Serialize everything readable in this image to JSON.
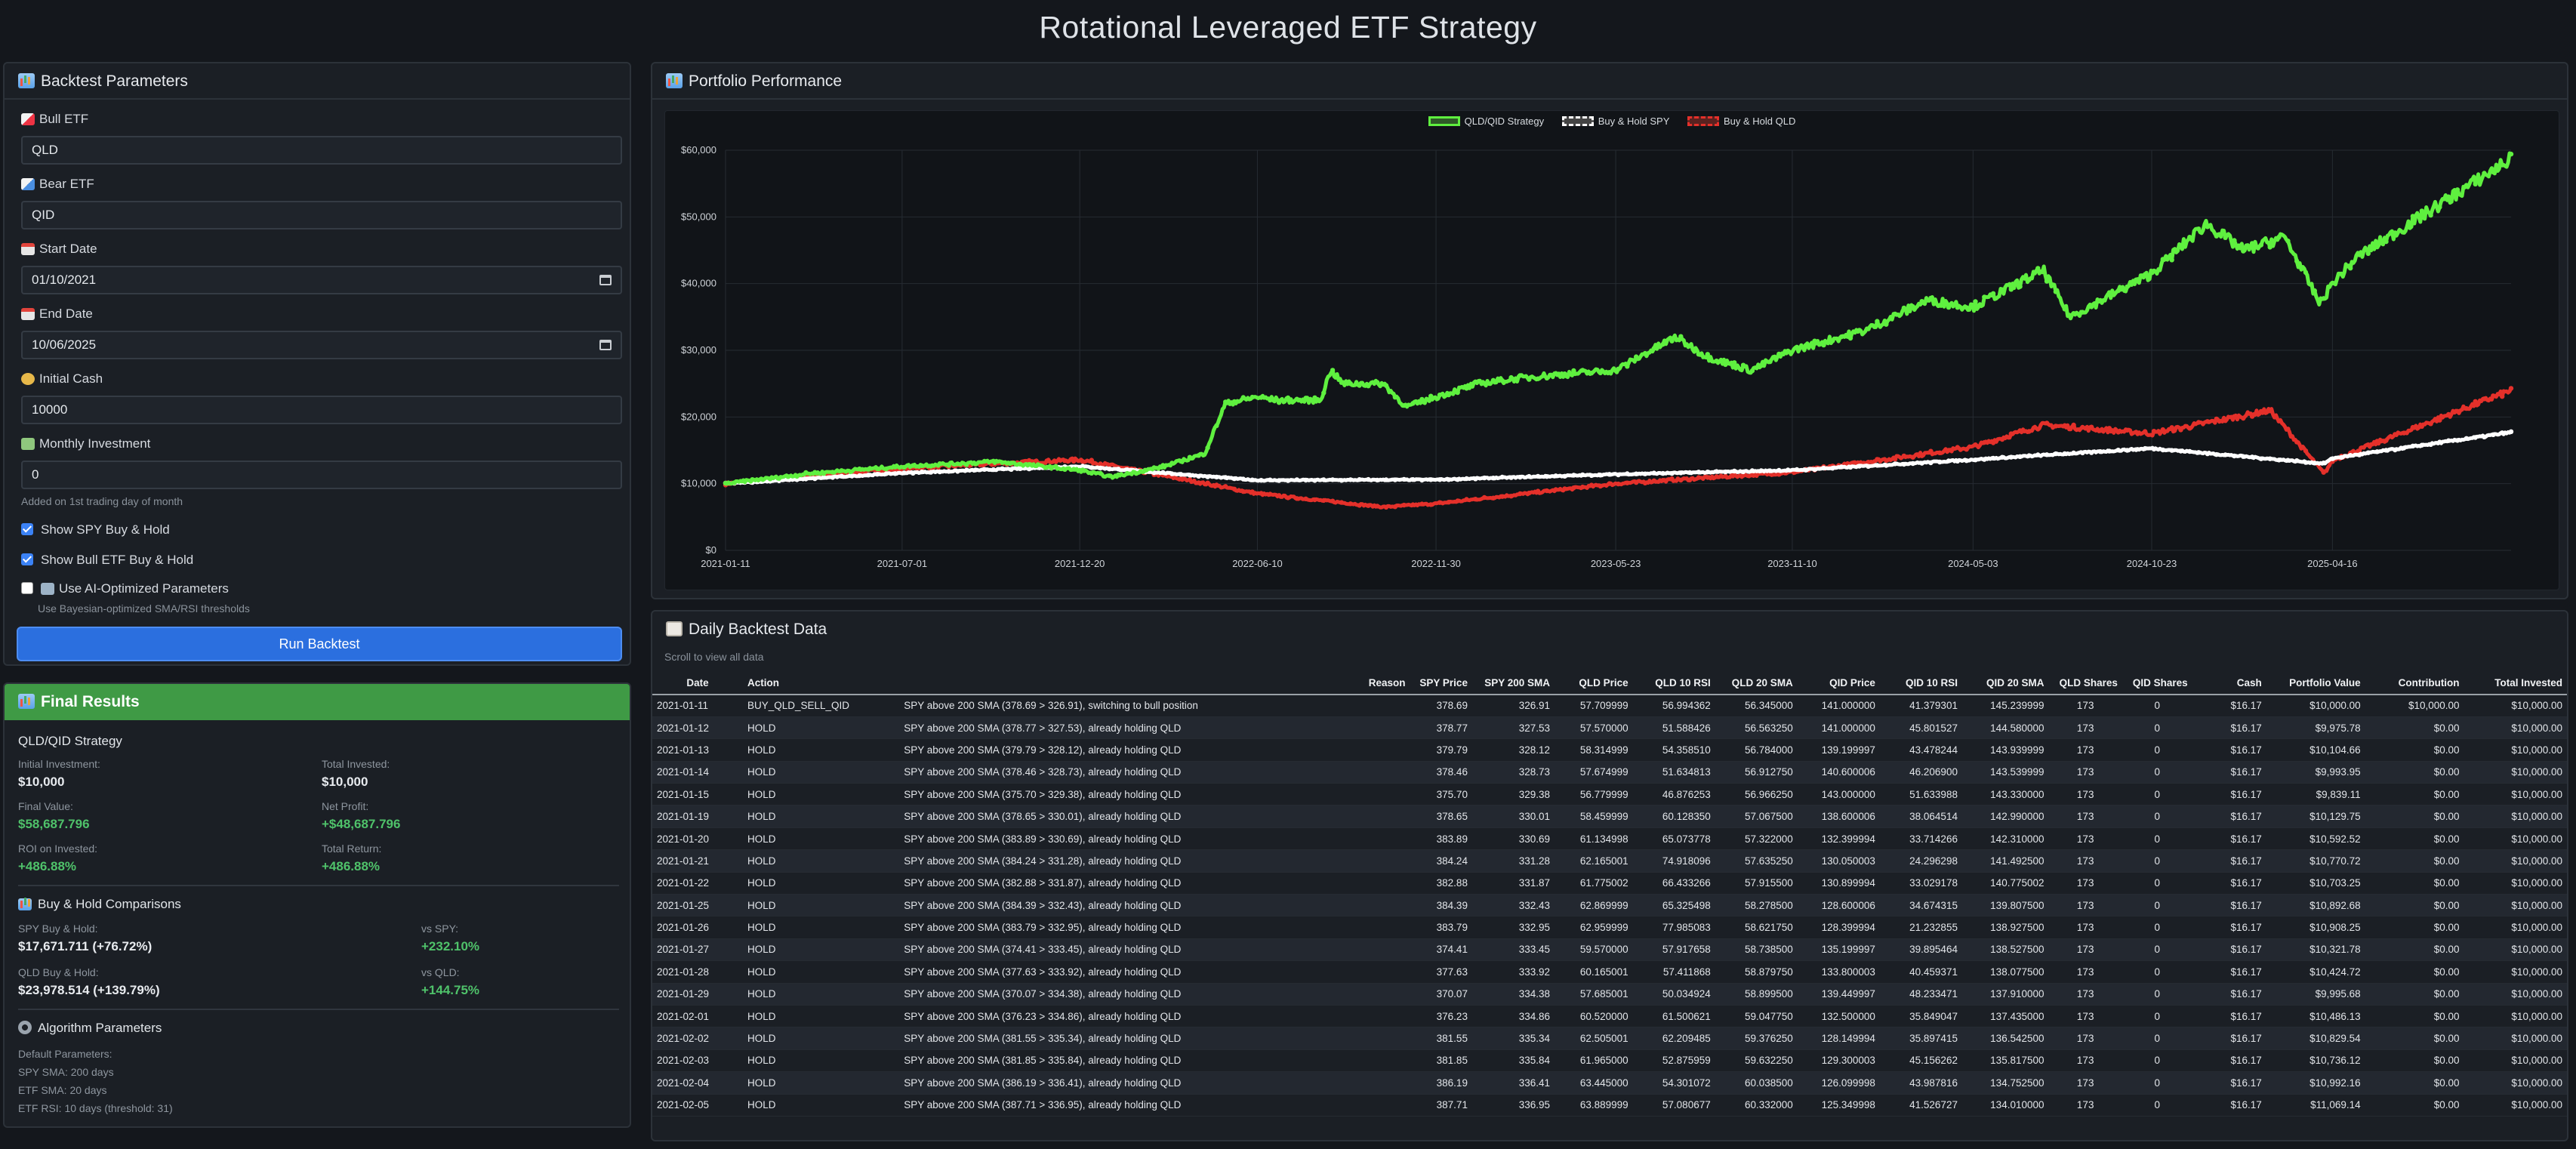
{
  "app_title": "Rotational Leveraged ETF Strategy",
  "params": {
    "header": "Backtest Parameters",
    "bull_label": "Bull ETF",
    "bull_value": "QLD",
    "bear_label": "Bear ETF",
    "bear_value": "QID",
    "start_label": "Start Date",
    "start_value": "01/10/2021",
    "end_label": "End Date",
    "end_value": "10/06/2025",
    "cash_label": "Initial Cash",
    "cash_value": "10000",
    "monthly_label": "Monthly Investment",
    "monthly_value": "0",
    "monthly_hint": "Added on 1st trading day of month",
    "show_spy_label": "Show SPY Buy & Hold",
    "show_bull_label": "Show Bull ETF Buy & Hold",
    "ai_label": "Use AI-Optimized Parameters",
    "ai_hint": "Use Bayesian-optimized SMA/RSI thresholds",
    "run_label": "Run Backtest"
  },
  "results": {
    "header": "Final Results",
    "strategy_title": "QLD/QID Strategy",
    "initial_investment_label": "Initial Investment:",
    "initial_investment": "$10,000",
    "total_invested_label": "Total Invested:",
    "total_invested": "$10,000",
    "final_value_label": "Final Value:",
    "final_value": "$58,687.796",
    "net_profit_label": "Net Profit:",
    "net_profit": "+$48,687.796",
    "roi_label": "ROI on Invested:",
    "roi": "+486.88%",
    "total_return_label": "Total Return:",
    "total_return": "+486.88%",
    "comparisons_title": "Buy & Hold Comparisons",
    "spy_bh_label": "SPY Buy & Hold:",
    "spy_bh": "$17,671.711 (+76.72%)",
    "vs_spy_label": "vs SPY:",
    "vs_spy": "+232.10%",
    "qld_bh_label": "QLD Buy & Hold:",
    "qld_bh": "$23,978.514 (+139.79%)",
    "vs_qld_label": "vs QLD:",
    "vs_qld": "+144.75%",
    "algo_title": "Algorithm Parameters",
    "algo_default": "Default Parameters:",
    "algo_spy_sma": "SPY SMA: 200 days",
    "algo_etf_sma": "ETF SMA: 20 days",
    "algo_etf_rsi": "ETF RSI: 10 days (threshold: 31)"
  },
  "perf": {
    "header": "Portfolio Performance",
    "colors": {
      "strategy": "#5ff03f",
      "spy": "#ffffff",
      "qld": "#e4302a"
    }
  },
  "chart_data": {
    "type": "line",
    "title": "",
    "xlabel": "",
    "ylabel": "",
    "ylim": [
      0,
      60000
    ],
    "yticks": [
      "$0",
      "$10,000",
      "$20,000",
      "$30,000",
      "$40,000",
      "$50,000",
      "$60,000"
    ],
    "xticks": [
      "2021-01-11",
      "2021-07-01",
      "2021-12-20",
      "2022-06-10",
      "2022-11-30",
      "2023-05-23",
      "2023-11-10",
      "2024-05-03",
      "2024-10-23",
      "2025-04-16"
    ],
    "legend_position": "top-center",
    "series": [
      {
        "name": "QLD/QID Strategy",
        "points": [
          [
            "2021-01-11",
            10000
          ],
          [
            "2021-04-01",
            11500
          ],
          [
            "2021-07-01",
            12600
          ],
          [
            "2021-09-30",
            13300
          ],
          [
            "2021-12-20",
            12000
          ],
          [
            "2022-01-20",
            11000
          ],
          [
            "2022-03-10",
            12500
          ],
          [
            "2022-04-20",
            14500
          ],
          [
            "2022-05-10",
            22000
          ],
          [
            "2022-06-10",
            23000
          ],
          [
            "2022-07-01",
            22500
          ],
          [
            "2022-08-10",
            22500
          ],
          [
            "2022-08-20",
            27000
          ],
          [
            "2022-09-01",
            25000
          ],
          [
            "2022-10-10",
            25000
          ],
          [
            "2022-11-01",
            21500
          ],
          [
            "2022-11-30",
            23000
          ],
          [
            "2023-01-10",
            25000
          ],
          [
            "2023-03-01",
            26000
          ],
          [
            "2023-05-23",
            27000
          ],
          [
            "2023-07-20",
            32000
          ],
          [
            "2023-08-20",
            29000
          ],
          [
            "2023-10-01",
            27000
          ],
          [
            "2023-11-10",
            30000
          ],
          [
            "2024-01-20",
            33000
          ],
          [
            "2024-03-20",
            37500
          ],
          [
            "2024-05-03",
            36500
          ],
          [
            "2024-07-10",
            42000
          ],
          [
            "2024-08-05",
            35000
          ],
          [
            "2024-10-23",
            41500
          ],
          [
            "2024-12-15",
            49000
          ],
          [
            "2025-01-20",
            45000
          ],
          [
            "2025-03-01",
            47000
          ],
          [
            "2025-04-04",
            37000
          ],
          [
            "2025-04-16",
            40000
          ],
          [
            "2025-05-10",
            44000
          ],
          [
            "2025-07-10",
            50000
          ],
          [
            "2025-10-06",
            58700
          ]
        ]
      },
      {
        "name": "Buy & Hold SPY",
        "points": [
          [
            "2021-01-11",
            10000
          ],
          [
            "2021-07-01",
            11600
          ],
          [
            "2021-12-20",
            12600
          ],
          [
            "2022-06-10",
            10500
          ],
          [
            "2022-11-30",
            10600
          ],
          [
            "2023-05-23",
            11400
          ],
          [
            "2023-11-10",
            12000
          ],
          [
            "2024-05-03",
            13600
          ],
          [
            "2024-10-23",
            15300
          ],
          [
            "2025-04-08",
            13000
          ],
          [
            "2025-04-16",
            13800
          ],
          [
            "2025-10-06",
            17700
          ]
        ]
      },
      {
        "name": "Buy & Hold QLD",
        "points": [
          [
            "2021-01-11",
            10000
          ],
          [
            "2021-07-01",
            12300
          ],
          [
            "2021-12-20",
            13600
          ],
          [
            "2022-06-10",
            8500
          ],
          [
            "2022-10-10",
            6500
          ],
          [
            "2022-11-30",
            7000
          ],
          [
            "2023-05-23",
            10000
          ],
          [
            "2023-11-10",
            11700
          ],
          [
            "2024-05-03",
            15500
          ],
          [
            "2024-07-10",
            18800
          ],
          [
            "2024-10-23",
            17500
          ],
          [
            "2025-02-15",
            21000
          ],
          [
            "2025-04-08",
            11500
          ],
          [
            "2025-04-16",
            13500
          ],
          [
            "2025-10-06",
            24000
          ]
        ]
      }
    ]
  },
  "table": {
    "header": "Daily Backtest Data",
    "scroll_hint": "Scroll to view all data",
    "columns": [
      "Date",
      "Action",
      "Reason",
      "SPY Price",
      "SPY 200 SMA",
      "QLD Price",
      "QLD 10 RSI",
      "QLD 20 SMA",
      "QID Price",
      "QID 10 RSI",
      "QID 20 SMA",
      "QLD Shares",
      "QID Shares",
      "Cash",
      "Portfolio Value",
      "Contribution",
      "Total Invested"
    ],
    "rows": [
      [
        "2021-01-11",
        "BUY_QLD_SELL_QID",
        "SPY above 200 SMA (378.69 > 326.91), switching to bull position",
        "378.69",
        "326.91",
        "57.709999",
        "56.994362",
        "56.345000",
        "141.000000",
        "41.379301",
        "145.239999",
        "173",
        "0",
        "$16.17",
        "$10,000.00",
        "$10,000.00",
        "$10,000.00"
      ],
      [
        "2021-01-12",
        "HOLD",
        "SPY above 200 SMA (378.77 > 327.53), already holding QLD",
        "378.77",
        "327.53",
        "57.570000",
        "51.588426",
        "56.563250",
        "141.000000",
        "45.801527",
        "144.580000",
        "173",
        "0",
        "$16.17",
        "$9,975.78",
        "$0.00",
        "$10,000.00"
      ],
      [
        "2021-01-13",
        "HOLD",
        "SPY above 200 SMA (379.79 > 328.12), already holding QLD",
        "379.79",
        "328.12",
        "58.314999",
        "54.358510",
        "56.784000",
        "139.199997",
        "43.478244",
        "143.939999",
        "173",
        "0",
        "$16.17",
        "$10,104.66",
        "$0.00",
        "$10,000.00"
      ],
      [
        "2021-01-14",
        "HOLD",
        "SPY above 200 SMA (378.46 > 328.73), already holding QLD",
        "378.46",
        "328.73",
        "57.674999",
        "51.634813",
        "56.912750",
        "140.600006",
        "46.206900",
        "143.539999",
        "173",
        "0",
        "$16.17",
        "$9,993.95",
        "$0.00",
        "$10,000.00"
      ],
      [
        "2021-01-15",
        "HOLD",
        "SPY above 200 SMA (375.70 > 329.38), already holding QLD",
        "375.70",
        "329.38",
        "56.779999",
        "46.876253",
        "56.966250",
        "143.000000",
        "51.633988",
        "143.330000",
        "173",
        "0",
        "$16.17",
        "$9,839.11",
        "$0.00",
        "$10,000.00"
      ],
      [
        "2021-01-19",
        "HOLD",
        "SPY above 200 SMA (378.65 > 330.01), already holding QLD",
        "378.65",
        "330.01",
        "58.459999",
        "60.128350",
        "57.067500",
        "138.600006",
        "38.064514",
        "142.990000",
        "173",
        "0",
        "$16.17",
        "$10,129.75",
        "$0.00",
        "$10,000.00"
      ],
      [
        "2021-01-20",
        "HOLD",
        "SPY above 200 SMA (383.89 > 330.69), already holding QLD",
        "383.89",
        "330.69",
        "61.134998",
        "65.073778",
        "57.322000",
        "132.399994",
        "33.714266",
        "142.310000",
        "173",
        "0",
        "$16.17",
        "$10,592.52",
        "$0.00",
        "$10,000.00"
      ],
      [
        "2021-01-21",
        "HOLD",
        "SPY above 200 SMA (384.24 > 331.28), already holding QLD",
        "384.24",
        "331.28",
        "62.165001",
        "74.918096",
        "57.635250",
        "130.050003",
        "24.296298",
        "141.492500",
        "173",
        "0",
        "$16.17",
        "$10,770.72",
        "$0.00",
        "$10,000.00"
      ],
      [
        "2021-01-22",
        "HOLD",
        "SPY above 200 SMA (382.88 > 331.87), already holding QLD",
        "382.88",
        "331.87",
        "61.775002",
        "66.433266",
        "57.915500",
        "130.899994",
        "33.029178",
        "140.775002",
        "173",
        "0",
        "$16.17",
        "$10,703.25",
        "$0.00",
        "$10,000.00"
      ],
      [
        "2021-01-25",
        "HOLD",
        "SPY above 200 SMA (384.39 > 332.43), already holding QLD",
        "384.39",
        "332.43",
        "62.869999",
        "65.325498",
        "58.278500",
        "128.600006",
        "34.674315",
        "139.807500",
        "173",
        "0",
        "$16.17",
        "$10,892.68",
        "$0.00",
        "$10,000.00"
      ],
      [
        "2021-01-26",
        "HOLD",
        "SPY above 200 SMA (383.79 > 332.95), already holding QLD",
        "383.79",
        "332.95",
        "62.959999",
        "77.985083",
        "58.621750",
        "128.399994",
        "21.232855",
        "138.927500",
        "173",
        "0",
        "$16.17",
        "$10,908.25",
        "$0.00",
        "$10,000.00"
      ],
      [
        "2021-01-27",
        "HOLD",
        "SPY above 200 SMA (374.41 > 333.45), already holding QLD",
        "374.41",
        "333.45",
        "59.570000",
        "57.917658",
        "58.738500",
        "135.199997",
        "39.895464",
        "138.527500",
        "173",
        "0",
        "$16.17",
        "$10,321.78",
        "$0.00",
        "$10,000.00"
      ],
      [
        "2021-01-28",
        "HOLD",
        "SPY above 200 SMA (377.63 > 333.92), already holding QLD",
        "377.63",
        "333.92",
        "60.165001",
        "57.411868",
        "58.879750",
        "133.800003",
        "40.459371",
        "138.077500",
        "173",
        "0",
        "$16.17",
        "$10,424.72",
        "$0.00",
        "$10,000.00"
      ],
      [
        "2021-01-29",
        "HOLD",
        "SPY above 200 SMA (370.07 > 334.38), already holding QLD",
        "370.07",
        "334.38",
        "57.685001",
        "50.034924",
        "58.899500",
        "139.449997",
        "48.233471",
        "137.910000",
        "173",
        "0",
        "$16.17",
        "$9,995.68",
        "$0.00",
        "$10,000.00"
      ],
      [
        "2021-02-01",
        "HOLD",
        "SPY above 200 SMA (376.23 > 334.86), already holding QLD",
        "376.23",
        "334.86",
        "60.520000",
        "61.500621",
        "59.047750",
        "132.500000",
        "35.849047",
        "137.435000",
        "173",
        "0",
        "$16.17",
        "$10,486.13",
        "$0.00",
        "$10,000.00"
      ],
      [
        "2021-02-02",
        "HOLD",
        "SPY above 200 SMA (381.55 > 335.34), already holding QLD",
        "381.55",
        "335.34",
        "62.505001",
        "62.209485",
        "59.376250",
        "128.149994",
        "35.897415",
        "136.542500",
        "173",
        "0",
        "$16.17",
        "$10,829.54",
        "$0.00",
        "$10,000.00"
      ],
      [
        "2021-02-03",
        "HOLD",
        "SPY above 200 SMA (381.85 > 335.84), already holding QLD",
        "381.85",
        "335.84",
        "61.965000",
        "52.875959",
        "59.632250",
        "129.300003",
        "45.156262",
        "135.817500",
        "173",
        "0",
        "$16.17",
        "$10,736.12",
        "$0.00",
        "$10,000.00"
      ],
      [
        "2021-02-04",
        "HOLD",
        "SPY above 200 SMA (386.19 > 336.41), already holding QLD",
        "386.19",
        "336.41",
        "63.445000",
        "54.301072",
        "60.038500",
        "126.099998",
        "43.987816",
        "134.752500",
        "173",
        "0",
        "$16.17",
        "$10,992.16",
        "$0.00",
        "$10,000.00"
      ],
      [
        "2021-02-05",
        "HOLD",
        "SPY above 200 SMA (387.71 > 336.95), already holding QLD",
        "387.71",
        "336.95",
        "63.889999",
        "57.080677",
        "60.332000",
        "125.349998",
        "41.526727",
        "134.010000",
        "173",
        "0",
        "$16.17",
        "$11,069.14",
        "$0.00",
        "$10,000.00"
      ]
    ]
  }
}
